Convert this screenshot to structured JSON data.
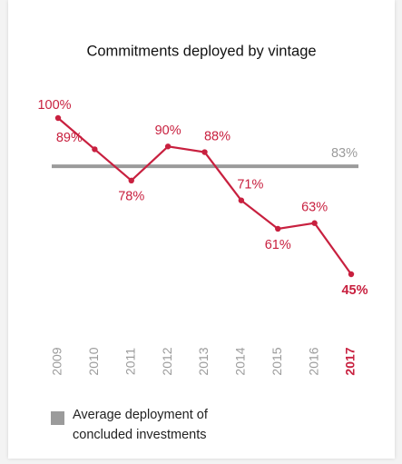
{
  "chart_data": {
    "type": "line",
    "title": "Commitments deployed by vintage",
    "categories": [
      "2009",
      "2010",
      "2011",
      "2012",
      "2013",
      "2014",
      "2015",
      "2016",
      "2017"
    ],
    "series": [
      {
        "name": "Commitments deployed",
        "color": "#c8203f",
        "values": [
          100,
          89,
          78,
          90,
          88,
          71,
          61,
          63,
          45
        ],
        "value_labels": [
          "100%",
          "89%",
          "78%",
          "90%",
          "88%",
          "71%",
          "61%",
          "63%",
          "45%"
        ]
      }
    ],
    "average": {
      "name": "Average deployment of concluded investments",
      "value": 83,
      "value_label": "83%",
      "color": "#9b9b9b"
    }
  }
}
